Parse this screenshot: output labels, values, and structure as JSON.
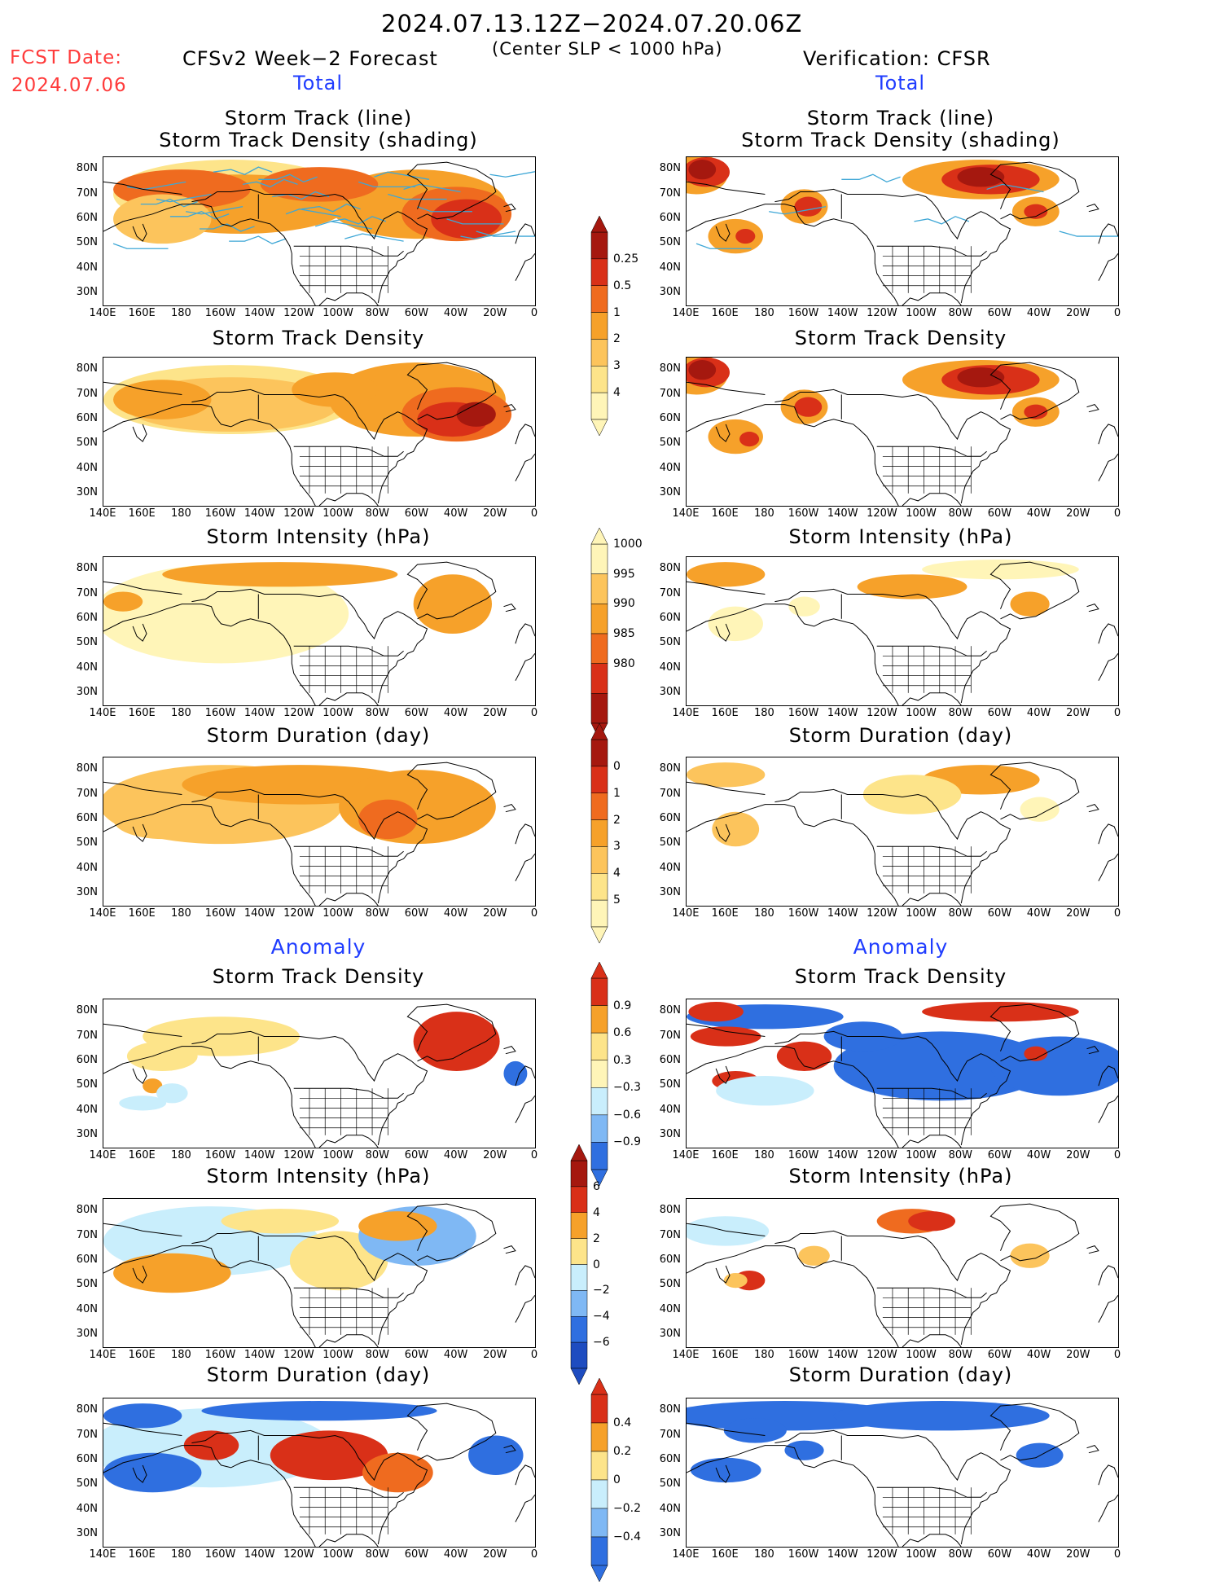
{
  "header": {
    "time_range": "2024.07.13.12Z−2024.07.20.06Z",
    "subtitle": "(Center SLP < 1000 hPa)",
    "fcst_label": "FCST Date:",
    "fcst_date": "2024.07.06",
    "left_title": "CFSv2 Week−2 Forecast",
    "right_title": "Verification: CFSR",
    "left_mode": "Total",
    "right_mode": "Total",
    "left_anom": "Anomaly",
    "right_anom": "Anomaly"
  },
  "panel_titles": {
    "track_line": "Storm Track (line)",
    "track_shading": "Storm Track Density (shading)",
    "density": "Storm Track Density",
    "intensity": "Storm Intensity (hPa)",
    "duration": "Storm Duration (day)"
  },
  "axes": {
    "lat_labels": [
      "80N",
      "70N",
      "60N",
      "50N",
      "40N",
      "30N"
    ],
    "lon_labels": [
      "140E",
      "160E",
      "180",
      "160W",
      "140W",
      "120W",
      "100W",
      "80W",
      "60W",
      "40W",
      "20W",
      "0"
    ]
  },
  "colorbars": {
    "density_total": [
      "0.25",
      "0.5",
      "1",
      "2",
      "3",
      "4"
    ],
    "intensity_total": [
      "1000",
      "995",
      "990",
      "985",
      "980"
    ],
    "duration_total": [
      "0",
      "1",
      "2",
      "3",
      "4",
      "5"
    ],
    "density_anom": [
      "0.9",
      "0.6",
      "0.3",
      "−0.3",
      "−0.6",
      "−0.9"
    ],
    "intensity_anom": [
      "6",
      "4",
      "2",
      "0",
      "−2",
      "−4",
      "−6"
    ],
    "duration_anom": [
      "0.4",
      "0.2",
      "0",
      "−0.2",
      "−0.4"
    ]
  },
  "colors": {
    "pale_yellow": "#fff5b8",
    "light_yellow": "#fde48a",
    "light_orange": "#fcc45c",
    "orange": "#f6a12a",
    "dark_orange": "#ef6b1f",
    "red": "#d93018",
    "dark_red": "#a5180f",
    "light_blue": "#c9eefc",
    "mid_blue": "#7fb8f4",
    "blue": "#2f6fe0",
    "dark_blue": "#1e4cc0",
    "track_line": "#3ea7d6"
  }
}
